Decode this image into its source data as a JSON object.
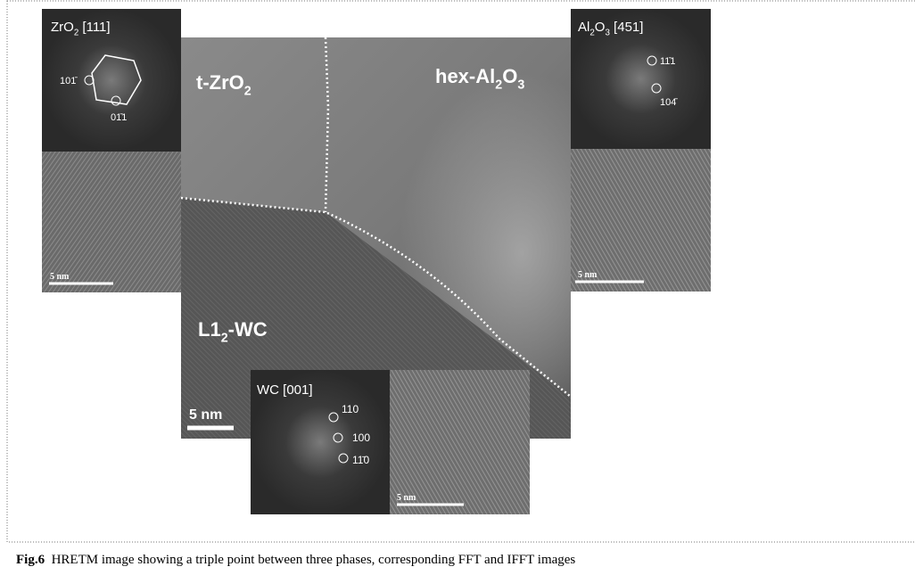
{
  "figure": {
    "main": {
      "labels": [
        [
          "t-ZrO",
          "2"
        ],
        [
          "hex-Al",
          "2",
          "O",
          "3"
        ],
        [
          "L1",
          "2",
          "-WC"
        ]
      ],
      "scale": "5 nm"
    },
    "zro2": {
      "title": [
        "ZrO",
        "2",
        " [111]"
      ],
      "spots": [
        "101̄",
        "01̄1"
      ],
      "scale": "5 nm"
    },
    "al2o3": {
      "title": [
        "Al",
        "2",
        "O",
        "3",
        " [451]"
      ],
      "spots": [
        "11̄1",
        "104̄"
      ],
      "scale": "5 nm"
    },
    "wc": {
      "title": [
        "WC [001]"
      ],
      "spots": [
        "110",
        "100",
        "11̄0"
      ],
      "scale": "5 nm"
    }
  },
  "caption": {
    "label": "Fig.6",
    "text": "HRETM image showing a triple point between three phases, corresponding FFT and IFFT images"
  }
}
